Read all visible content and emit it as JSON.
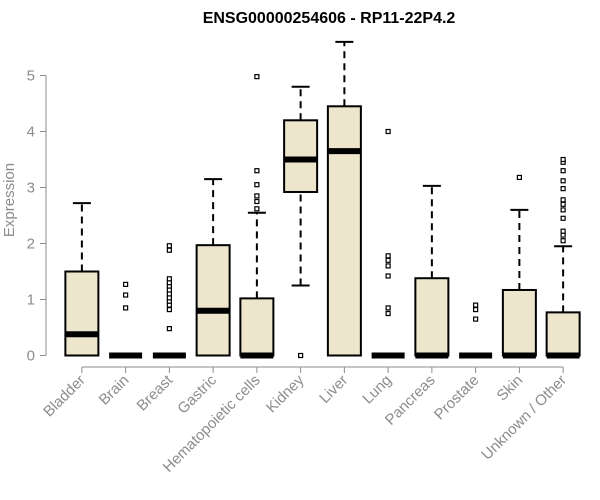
{
  "chart_data": {
    "type": "box",
    "title": "ENSG00000254606 - RP11-22P4.2",
    "ylabel": "Expression",
    "xlabel": "",
    "ylim": [
      0,
      5.6
    ],
    "yticks": [
      0,
      1,
      2,
      3,
      4,
      5
    ],
    "box_fill": "#ede6cc",
    "outline_color": "#000000",
    "categories": [
      {
        "name": "Bladder",
        "min": 0,
        "q1": 0,
        "median": 0.38,
        "q3": 1.5,
        "max": 2.72,
        "outliers": []
      },
      {
        "name": "Brain",
        "min": 0,
        "q1": 0,
        "median": 0,
        "q3": 0,
        "max": 0,
        "outliers": [
          0.85,
          1.08,
          1.27
        ]
      },
      {
        "name": "Breast",
        "min": 0,
        "q1": 0,
        "median": 0,
        "q3": 0,
        "max": 0,
        "outliers": [
          0.48,
          0.82,
          0.9,
          0.97,
          1.03,
          1.1,
          1.17,
          1.24,
          1.3,
          1.37,
          1.88,
          1.96
        ]
      },
      {
        "name": "Gastric",
        "min": 0,
        "q1": 0,
        "median": 0.8,
        "q3": 1.97,
        "max": 3.15,
        "outliers": []
      },
      {
        "name": "Hematopoietic cells",
        "min": 0,
        "q1": 0,
        "median": 0,
        "q3": 1.02,
        "max": 2.55,
        "outliers": [
          2.62,
          2.75,
          2.85,
          3.05,
          3.3,
          4.98
        ]
      },
      {
        "name": "Kidney",
        "min": 1.25,
        "q1": 2.92,
        "median": 3.5,
        "q3": 4.2,
        "max": 4.8,
        "outliers": [
          0
        ]
      },
      {
        "name": "Liver",
        "min": 0,
        "q1": 0,
        "median": 3.65,
        "q3": 4.45,
        "max": 5.6,
        "outliers": []
      },
      {
        "name": "Lung",
        "min": 0,
        "q1": 0,
        "median": 0,
        "q3": 0,
        "max": 0,
        "outliers": [
          0.75,
          0.85,
          1.42,
          1.6,
          1.7,
          1.78,
          4.0
        ]
      },
      {
        "name": "Pancreas",
        "min": 0,
        "q1": 0,
        "median": 0,
        "q3": 1.38,
        "max": 3.03,
        "outliers": []
      },
      {
        "name": "Prostate",
        "min": 0,
        "q1": 0,
        "median": 0,
        "q3": 0,
        "max": 0,
        "outliers": [
          0.65,
          0.82,
          0.9
        ]
      },
      {
        "name": "Skin",
        "min": 0,
        "q1": 0,
        "median": 0,
        "q3": 1.17,
        "max": 2.6,
        "outliers": [
          3.18
        ]
      },
      {
        "name": "Unknown / Other",
        "min": 0,
        "q1": 0,
        "median": 0,
        "q3": 0.77,
        "max": 1.95,
        "outliers": [
          2.05,
          2.15,
          2.22,
          2.45,
          2.6,
          2.7,
          2.78,
          2.98,
          3.12,
          3.3,
          3.45,
          3.5
        ]
      }
    ]
  }
}
